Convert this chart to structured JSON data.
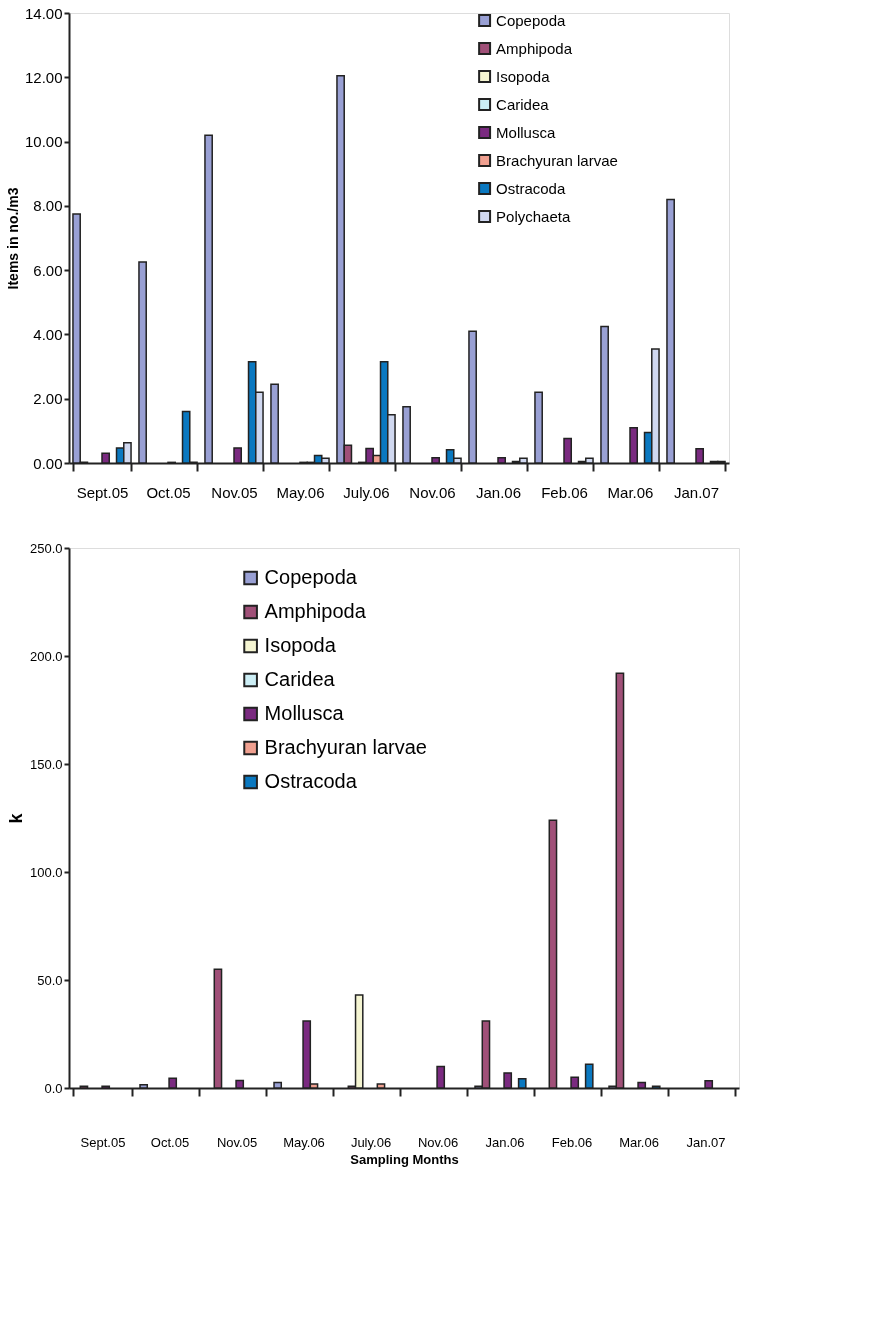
{
  "chart_data": [
    {
      "type": "bar",
      "ylabel": "Items in no./m3",
      "categories": [
        "Sept.05",
        "Oct.05",
        "Nov.05",
        "May.06",
        "July.06",
        "Nov.06",
        "Jan.06",
        "Feb.06",
        "Mar.06",
        "Jan.07"
      ],
      "series": [
        {
          "name": "Copepoda",
          "color": "#99a0d4",
          "values": [
            7.75,
            6.25,
            10.2,
            2.45,
            12.05,
            1.75,
            4.1,
            2.2,
            4.25,
            8.2
          ]
        },
        {
          "name": "Amphipoda",
          "color": "#a05078",
          "values": [
            0.02,
            null,
            null,
            null,
            0.55,
            null,
            null,
            null,
            null,
            null
          ]
        },
        {
          "name": "Isopoda",
          "color": "#f5f5d2",
          "values": [
            null,
            null,
            null,
            null,
            null,
            null,
            null,
            null,
            null,
            null
          ]
        },
        {
          "name": "Caridea",
          "color": "#cceef5",
          "values": [
            null,
            null,
            null,
            null,
            0.02,
            null,
            null,
            null,
            null,
            null
          ]
        },
        {
          "name": "Mollusca",
          "color": "#7a2a80",
          "values": [
            0.3,
            0.02,
            0.47,
            0.02,
            0.45,
            0.16,
            0.16,
            0.76,
            1.1,
            0.44
          ]
        },
        {
          "name": "Brachyuran larvae",
          "color": "#f0a090",
          "values": [
            null,
            null,
            null,
            0.02,
            0.23,
            null,
            null,
            null,
            null,
            null
          ]
        },
        {
          "name": "Ostracoda",
          "color": "#0a78c0",
          "values": [
            0.47,
            1.6,
            3.15,
            0.23,
            3.15,
            0.41,
            0.05,
            0.05,
            0.95,
            0.05
          ]
        },
        {
          "name": "Polychaeta",
          "color": "#d0d8f0",
          "values": [
            0.63,
            0.02,
            2.2,
            0.15,
            1.5,
            0.15,
            0.15,
            0.15,
            3.55,
            0.05
          ]
        }
      ],
      "ylim": [
        0,
        14
      ],
      "yticks": [
        {
          "value": 0,
          "label": "0.00"
        },
        {
          "value": 2,
          "label": "2.00"
        },
        {
          "value": 4,
          "label": "4.00"
        },
        {
          "value": 6,
          "label": "6.00"
        },
        {
          "value": 8,
          "label": "8.00"
        },
        {
          "value": 10,
          "label": "10.00"
        },
        {
          "value": 12,
          "label": "12.00"
        },
        {
          "value": 14,
          "label": "14.00"
        }
      ],
      "grid": false,
      "legend": "top right"
    },
    {
      "type": "bar",
      "xlabel": "Sampling Months",
      "ylabel": "k",
      "categories": [
        "Sept.05",
        "Oct.05",
        "Nov.05",
        "May.06",
        "July.06",
        "Nov.06",
        "Jan.06",
        "Feb.06",
        "Mar.06",
        "Jan.07"
      ],
      "series": [
        {
          "name": "Copepoda",
          "color": "#99a0d4",
          "values": [
            null,
            1.5,
            null,
            2.6,
            null,
            null,
            0.8,
            null,
            0.8,
            null
          ]
        },
        {
          "name": "Amphipoda",
          "color": "#a05078",
          "values": [
            0.8,
            null,
            55,
            null,
            0.8,
            null,
            31,
            124,
            192,
            null
          ]
        },
        {
          "name": "Isopoda",
          "color": "#f5f5d2",
          "values": [
            null,
            null,
            null,
            null,
            43,
            null,
            null,
            null,
            null,
            null
          ]
        },
        {
          "name": "Caridea",
          "color": "#cceef5",
          "values": [
            null,
            null,
            null,
            null,
            null,
            null,
            null,
            null,
            null,
            null
          ]
        },
        {
          "name": "Mollusca",
          "color": "#7a2a80",
          "values": [
            0.8,
            4.5,
            3.5,
            31,
            null,
            10,
            7,
            5,
            2.6,
            3.4
          ]
        },
        {
          "name": "Brachyuran larvae",
          "color": "#f0a090",
          "values": [
            null,
            null,
            null,
            1.8,
            1.8,
            null,
            null,
            null,
            null,
            null
          ]
        },
        {
          "name": "Ostracoda",
          "color": "#0a78c0",
          "values": [
            null,
            null,
            null,
            null,
            null,
            null,
            4.3,
            11,
            0.8,
            null
          ]
        }
      ],
      "ylim": [
        0,
        250
      ],
      "yticks": [
        {
          "value": 0,
          "label": "0.0"
        },
        {
          "value": 50,
          "label": "50.0"
        },
        {
          "value": 100,
          "label": "100.0"
        },
        {
          "value": 150,
          "label": "150.0"
        },
        {
          "value": 200,
          "label": "200.0"
        },
        {
          "value": 250,
          "label": "250.0"
        }
      ],
      "grid": false,
      "legend": "top"
    }
  ]
}
